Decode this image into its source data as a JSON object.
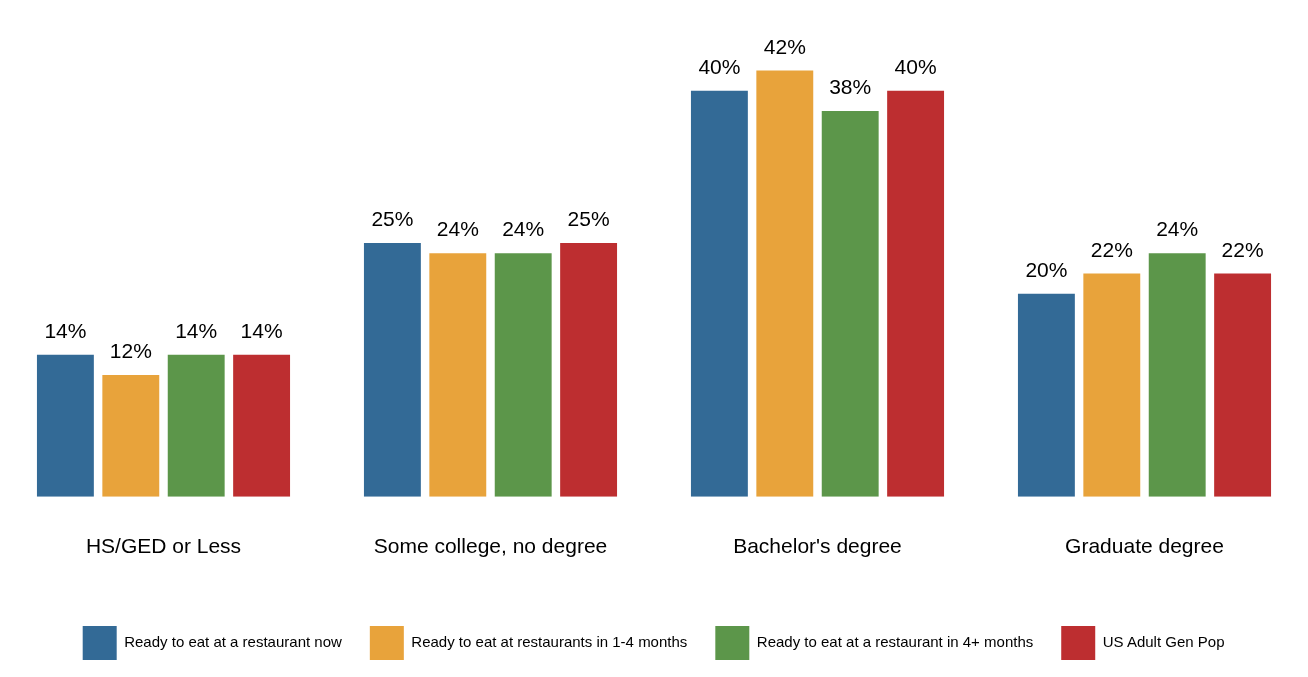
{
  "chart_data": {
    "type": "bar",
    "categories": [
      "HS/GED or Less",
      "Some college, no degree",
      "Bachelor's degree",
      "Graduate degree"
    ],
    "series": [
      {
        "name": "Ready to eat at a restaurant now",
        "color": "#336a96",
        "values": [
          14,
          25,
          40,
          20
        ],
        "value_labels": [
          "14%",
          "25%",
          "40%",
          "20%"
        ]
      },
      {
        "name": "Ready to eat at restaurants in 1-4 months",
        "color": "#e8a33b",
        "values": [
          12,
          24,
          42,
          22
        ],
        "value_labels": [
          "12%",
          "24%",
          "42%",
          "22%"
        ]
      },
      {
        "name": "Ready to eat at a restaurant in 4+ months",
        "color": "#5c964a",
        "values": [
          14,
          24,
          38,
          24
        ],
        "value_labels": [
          "14%",
          "24%",
          "38%",
          "24%"
        ]
      },
      {
        "name": "US Adult Gen Pop",
        "color": "#bd2e30",
        "values": [
          14,
          25,
          40,
          22
        ],
        "value_labels": [
          "14%",
          "25%",
          "40%",
          "22%"
        ]
      }
    ],
    "grid": false,
    "legend": "bottom",
    "tick_labels": "x"
  }
}
